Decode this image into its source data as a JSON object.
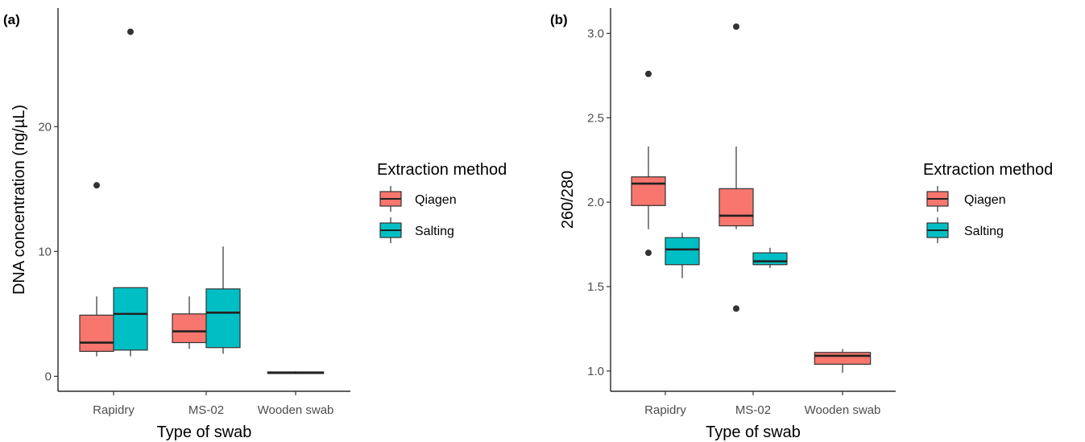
{
  "chart_data": [
    {
      "type": "box",
      "panel_label": "(a)",
      "xlabel": "Type of swab",
      "ylabel": "DNA concentration  (ng/µL)",
      "categories": [
        "Rapidry",
        "MS-02",
        "Wooden swab"
      ],
      "yticks": [
        0,
        10,
        20
      ],
      "ylim": [
        -1.2,
        29.5
      ],
      "legend": {
        "title": "Extraction method",
        "position": "right"
      },
      "series": [
        {
          "name": "Qiagen",
          "color": "#F8766D",
          "boxes": [
            {
              "category": "Rapidry",
              "lower_whisker": 1.6,
              "q1": 2.0,
              "median": 2.7,
              "q3": 4.9,
              "upper_whisker": 6.4,
              "outliers": [
                15.3
              ]
            },
            {
              "category": "MS-02",
              "lower_whisker": 2.2,
              "q1": 2.7,
              "median": 3.6,
              "q3": 5.0,
              "upper_whisker": 6.4,
              "outliers": []
            },
            {
              "category": "Wooden swab",
              "lower_whisker": 0.2,
              "q1": 0.25,
              "median": 0.3,
              "q3": 0.35,
              "upper_whisker": 0.4,
              "outliers": []
            }
          ]
        },
        {
          "name": "Salting",
          "color": "#00BFC4",
          "boxes": [
            {
              "category": "Rapidry",
              "lower_whisker": 1.6,
              "q1": 2.1,
              "median": 5.0,
              "q3": 7.1,
              "upper_whisker": 7.1,
              "outliers": [
                27.6
              ]
            },
            {
              "category": "MS-02",
              "lower_whisker": 1.8,
              "q1": 2.3,
              "median": 5.1,
              "q3": 7.0,
              "upper_whisker": 10.4,
              "outliers": []
            }
          ]
        }
      ]
    },
    {
      "type": "box",
      "panel_label": "(b)",
      "xlabel": "Type of swab",
      "ylabel": "260/280",
      "categories": [
        "Rapidry",
        "MS-02",
        "Wooden swab"
      ],
      "yticks": [
        1.0,
        1.5,
        2.0,
        2.5,
        3.0
      ],
      "ylim": [
        0.88,
        3.15
      ],
      "legend": {
        "title": "Extraction method",
        "position": "right"
      },
      "series": [
        {
          "name": "Qiagen",
          "color": "#F8766D",
          "boxes": [
            {
              "category": "Rapidry",
              "lower_whisker": 1.84,
              "q1": 1.98,
              "median": 2.11,
              "q3": 2.15,
              "upper_whisker": 2.33,
              "outliers": [
                2.76,
                1.7
              ]
            },
            {
              "category": "MS-02",
              "lower_whisker": 1.84,
              "q1": 1.86,
              "median": 1.92,
              "q3": 2.08,
              "upper_whisker": 2.33,
              "outliers": [
                3.04,
                1.37
              ]
            },
            {
              "category": "Wooden swab",
              "lower_whisker": 0.99,
              "q1": 1.04,
              "median": 1.09,
              "q3": 1.11,
              "upper_whisker": 1.13,
              "outliers": []
            }
          ]
        },
        {
          "name": "Salting",
          "color": "#00BFC4",
          "boxes": [
            {
              "category": "Rapidry",
              "lower_whisker": 1.55,
              "q1": 1.63,
              "median": 1.72,
              "q3": 1.79,
              "upper_whisker": 1.82,
              "outliers": []
            },
            {
              "category": "MS-02",
              "lower_whisker": 1.61,
              "q1": 1.63,
              "median": 1.65,
              "q3": 1.7,
              "upper_whisker": 1.73,
              "outliers": []
            }
          ]
        }
      ]
    }
  ]
}
